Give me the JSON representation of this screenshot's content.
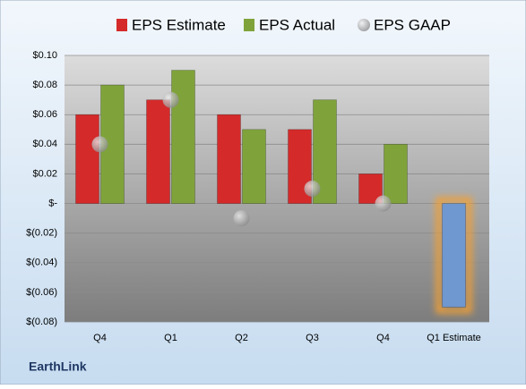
{
  "chart_data": {
    "type": "bar",
    "footer": "EarthLink",
    "categories": [
      "Q4",
      "Q1",
      "Q2",
      "Q3",
      "Q4",
      "Q1 Estimate"
    ],
    "series": [
      {
        "name": "EPS Estimate",
        "color": "#d42a2a",
        "point_colors": [
          "#d42a2a",
          "#d42a2a",
          "#d42a2a",
          "#d42a2a",
          "#d42a2a",
          "#6f97d0"
        ],
        "values": [
          0.06,
          0.07,
          0.06,
          0.05,
          0.02,
          -0.07
        ]
      },
      {
        "name": "EPS Actual",
        "color": "#7fa33a",
        "values": [
          0.08,
          0.09,
          0.05,
          0.07,
          0.04,
          null
        ]
      },
      {
        "name": "EPS GAAP",
        "color": "#a6a6a6",
        "kind": "marker",
        "values": [
          0.04,
          0.07,
          -0.01,
          0.01,
          0.0,
          null
        ]
      }
    ],
    "highlight_glow": "#f5a033",
    "ylim": [
      -0.08,
      0.1
    ],
    "yticks": [
      {
        "value": 0.1,
        "label": "$0.10"
      },
      {
        "value": 0.08,
        "label": "$0.08"
      },
      {
        "value": 0.06,
        "label": "$0.06"
      },
      {
        "value": 0.04,
        "label": "$0.04"
      },
      {
        "value": 0.02,
        "label": "$0.02"
      },
      {
        "value": 0,
        "label": "$-"
      },
      {
        "value": -0.02,
        "label": "$(0.02)"
      },
      {
        "value": -0.04,
        "label": "$(0.04)"
      },
      {
        "value": -0.06,
        "label": "$(0.06)"
      },
      {
        "value": -0.08,
        "label": "$(0.08)"
      }
    ],
    "grid": true,
    "legend": "top"
  }
}
